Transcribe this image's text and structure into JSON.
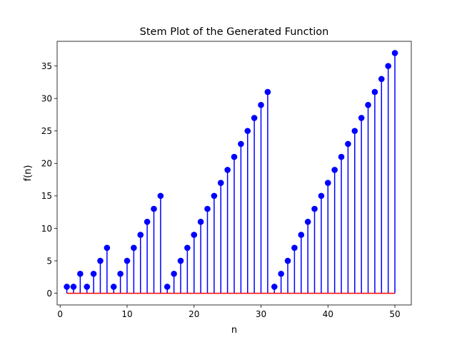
{
  "chart_data": {
    "type": "stem",
    "title": "Stem Plot of the Generated Function",
    "xlabel": "n",
    "ylabel": "f(n)",
    "xlim": [
      -0.45,
      52.45
    ],
    "ylim": [
      -1.8,
      38.8
    ],
    "xticks": [
      0,
      10,
      20,
      30,
      40,
      50
    ],
    "yticks": [
      0,
      5,
      10,
      15,
      20,
      25,
      30,
      35
    ],
    "grid": false,
    "legend": "none",
    "colors": {
      "stem": "#0000ff",
      "marker": "#0000ff",
      "baseline": "#ff0000"
    },
    "x": [
      1,
      2,
      3,
      4,
      5,
      6,
      7,
      8,
      9,
      10,
      11,
      12,
      13,
      14,
      15,
      16,
      17,
      18,
      19,
      20,
      21,
      22,
      23,
      24,
      25,
      26,
      27,
      28,
      29,
      30,
      31,
      32,
      33,
      34,
      35,
      36,
      37,
      38,
      39,
      40,
      41,
      42,
      43,
      44,
      45,
      46,
      47,
      48,
      49,
      50
    ],
    "values": [
      1,
      1,
      3,
      1,
      3,
      5,
      7,
      1,
      3,
      5,
      7,
      9,
      11,
      13,
      15,
      1,
      3,
      5,
      7,
      9,
      11,
      13,
      15,
      17,
      19,
      21,
      23,
      25,
      27,
      29,
      31,
      1,
      3,
      5,
      7,
      9,
      11,
      13,
      15,
      17,
      19,
      21,
      23,
      25,
      27,
      29,
      31,
      33,
      35,
      37
    ]
  }
}
